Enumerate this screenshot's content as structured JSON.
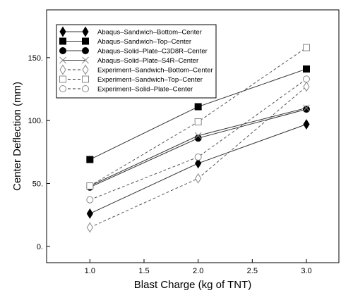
{
  "chart_data": {
    "type": "line",
    "xlabel": "Blast Charge (kg of TNT)",
    "ylabel": "Center Deflection (mm)",
    "xlim": [
      0.6,
      3.3
    ],
    "ylim": [
      -13,
      188
    ],
    "xticks": [
      "1.0",
      "1.5",
      "2.0",
      "2.5",
      "3.0"
    ],
    "yticks": [
      "0.",
      "50.",
      "100.",
      "150."
    ],
    "x": [
      1.0,
      2.0,
      3.0
    ],
    "legend_position": "top-left",
    "grid": false,
    "series": [
      {
        "name": "Abaqus–Sandwich–Bottom–Center",
        "values": [
          26,
          66,
          97
        ],
        "marker": "diamond-filled",
        "dash": "solid"
      },
      {
        "name": "Abaqus–Sandwich–Top–Center",
        "values": [
          69,
          111,
          141
        ],
        "marker": "square-filled",
        "dash": "solid"
      },
      {
        "name": "Abaqus–Solid–Plate–C3D8R–Center",
        "values": [
          47,
          86,
          109
        ],
        "marker": "circle-filled",
        "dash": "solid"
      },
      {
        "name": "Abaqus–Solid–Plate–S4R–Center",
        "values": [
          48,
          88,
          110
        ],
        "marker": "cross",
        "dash": "solid"
      },
      {
        "name": "Experiment–Sandwich–Bottom–Center",
        "values": [
          15,
          54,
          127
        ],
        "marker": "diamond-open",
        "dash": "dashed"
      },
      {
        "name": "Experiment–Sandwich–Top–Center",
        "values": [
          48,
          99,
          158
        ],
        "marker": "square-open",
        "dash": "dashed"
      },
      {
        "name": "Experiment–Solid–Plate–Center",
        "values": [
          37,
          71,
          133
        ],
        "marker": "circle-open",
        "dash": "dashed"
      }
    ]
  }
}
